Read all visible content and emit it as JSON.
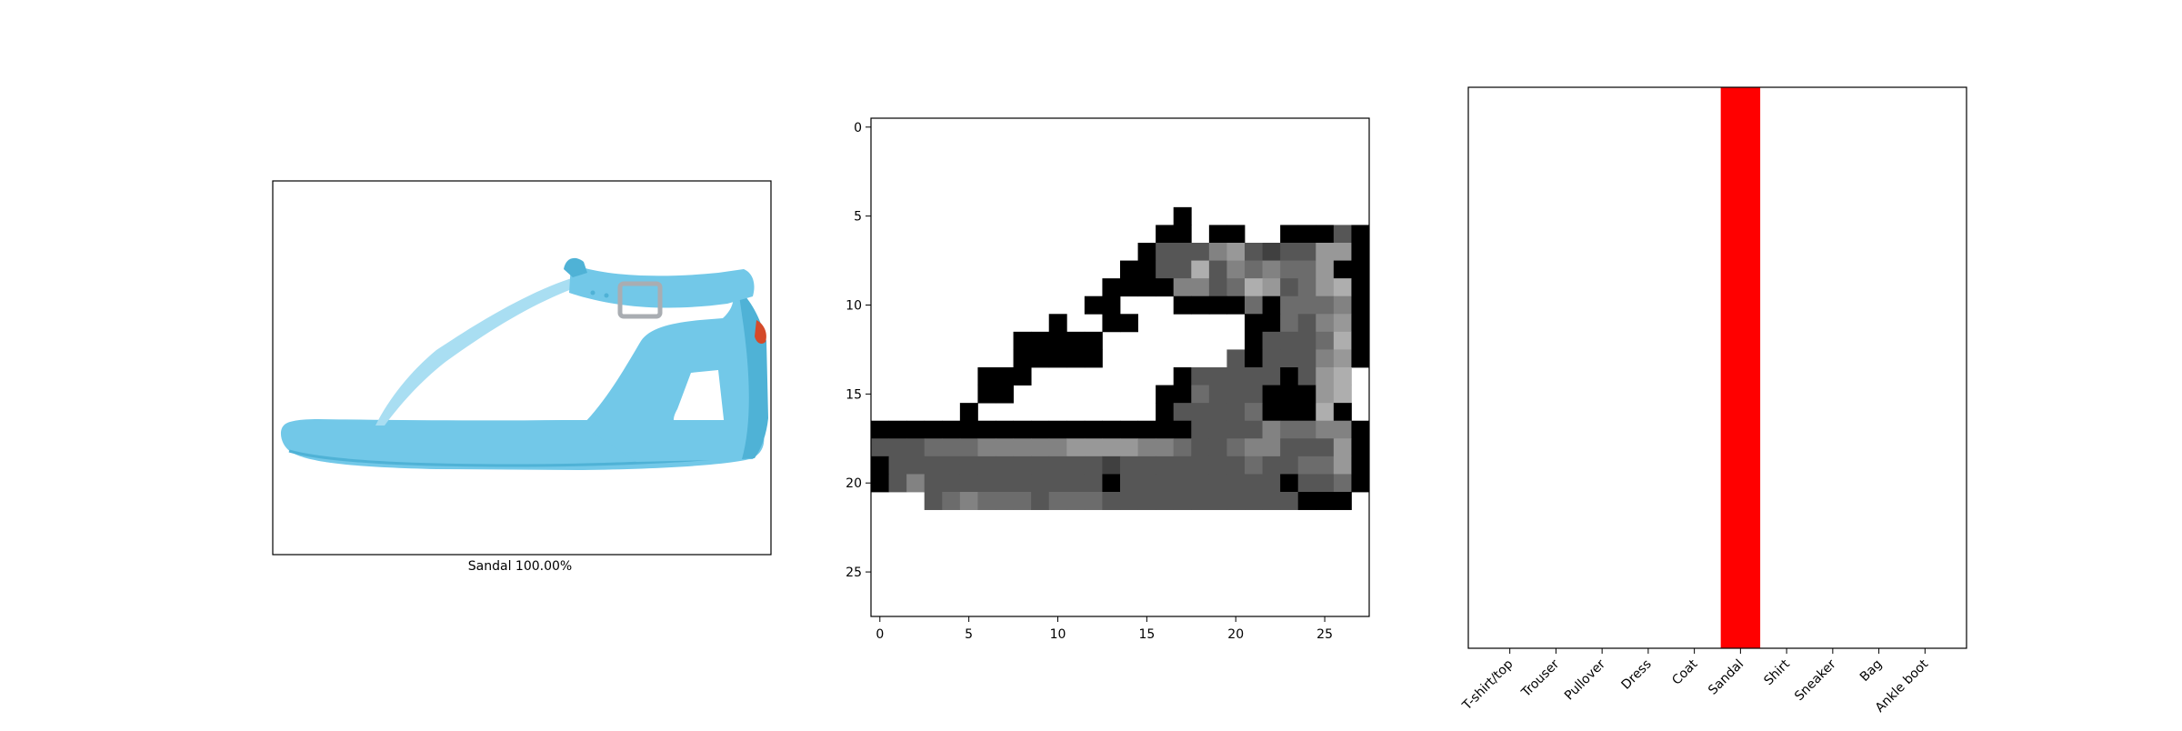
{
  "caption": "Sandal 100.00%",
  "colors": {
    "sandal_body": "#72c8e8",
    "sandal_shade": "#4fb2d6",
    "sandal_highlight": "#a9def2",
    "buckle": "#a9adb2",
    "tag": "#d44a2a",
    "predicted_bar": "#ff0000",
    "axes": "#000000"
  },
  "chart_data": [
    {
      "type": "heatmap",
      "title": "",
      "xlabel": "",
      "ylabel": "",
      "xlim": [
        -0.5,
        27.5
      ],
      "ylim": [
        27.5,
        -0.5
      ],
      "xticks": [
        0,
        5,
        10,
        15,
        20,
        25
      ],
      "yticks": [
        0,
        5,
        10,
        15,
        20,
        25
      ],
      "cmap": "gray_r",
      "grid": [
        "............................",
        "............................",
        "............................",
        "............................",
        "............................",
        ".................K..........",
        "................KM.KK..KKKDK",
        "...............KDDDFGDCDDGGM",
        "..............KKDDHDFEFEEGKK",
        ".............KKKKFFDEHGDEGHK",
        "............KK...KKKKEKEEEFK",
        "..........K..KK......KKEDFGK",
        "........KKKKK........KDDDEHK",
        "........KKKKK.......DKDDDFGK",
        "......KKK........KDDDDDKDGH",
        "......KK........KKEDDDKKKGH",
        ".....K..........KDDDDEKKKHK",
        "KKKKKKKKKKKKKKKKKKDDDDFEEFFK",
        "DDDEEEFFFFFGGGGFFEDDEFFDDDGK",
        "ODDDDDDDDDDDDCDDDDDDDEDDEEGK",
        "KDFDDDDDDDDDDKDDDDDDDDDKDDEK",
        "...DEFEEEDEEEDDDDDDDDDDDKKK.",
        "............................",
        "............................",
        "............................",
        "............................",
        "............................",
        "............................"
      ]
    },
    {
      "type": "bar",
      "title": "",
      "xlabel": "",
      "ylabel": "",
      "categories": [
        "T-shirt/top",
        "Trouser",
        "Pullover",
        "Dress",
        "Coat",
        "Sandal",
        "Shirt",
        "Sneaker",
        "Bag",
        "Ankle boot"
      ],
      "values": [
        0,
        0,
        0,
        0,
        0,
        1,
        0,
        0,
        0,
        0
      ],
      "ylim": [
        0,
        1
      ],
      "highlight": "Sandal",
      "show_yticks": false
    }
  ]
}
